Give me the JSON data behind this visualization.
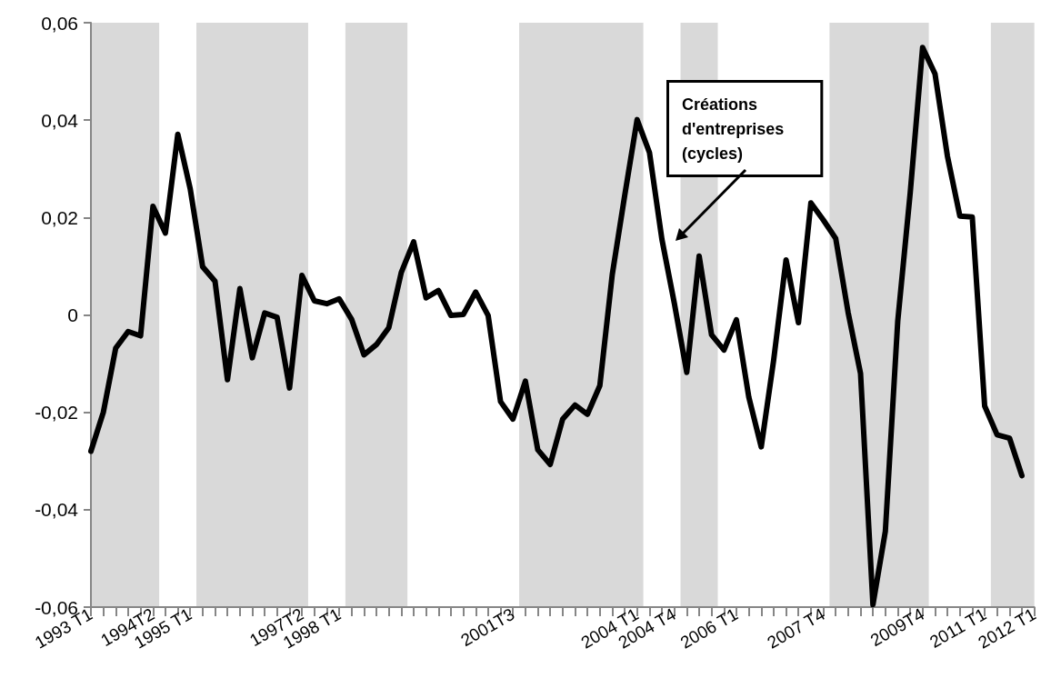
{
  "chart_data": {
    "type": "line",
    "categories": [
      "1993 T1",
      null,
      null,
      null,
      null,
      "1994T2",
      null,
      null,
      "1995 T1",
      null,
      null,
      null,
      null,
      null,
      null,
      null,
      null,
      "1997T2",
      null,
      null,
      "1998 T1",
      null,
      null,
      null,
      null,
      null,
      null,
      null,
      null,
      null,
      null,
      null,
      null,
      null,
      "2001T3",
      null,
      null,
      null,
      null,
      null,
      null,
      null,
      null,
      null,
      "2004 T1",
      null,
      null,
      "2004 T4",
      null,
      null,
      null,
      null,
      "2006 T1",
      null,
      null,
      null,
      null,
      null,
      null,
      "2007 T4",
      null,
      null,
      null,
      null,
      null,
      null,
      null,
      "2009T4",
      null,
      null,
      null,
      null,
      "2011 T1",
      null,
      null,
      null,
      "2012 T1"
    ],
    "series": [
      {
        "color": "#000000",
        "values": [
          -0.028,
          -0.02,
          -0.0068,
          -0.0034,
          -0.0043,
          0.0223,
          0.0168,
          0.0371,
          0.0259,
          0.0099,
          0.0069,
          -0.0133,
          0.0054,
          -0.0088,
          0.0004,
          -0.0005,
          -0.015,
          0.0081,
          0.0029,
          0.0023,
          0.0033,
          -0.0009,
          -0.0082,
          -0.0061,
          -0.0026,
          0.0087,
          0.015,
          0.0035,
          0.005,
          -0.0001,
          0.0001,
          0.0047,
          -0.0001,
          -0.0178,
          -0.0214,
          -0.0136,
          -0.0277,
          -0.0307,
          -0.0214,
          -0.0185,
          -0.0204,
          -0.0145,
          0.0083,
          0.0245,
          0.0401,
          0.0333,
          0.0155,
          0.0024,
          -0.0118,
          0.0121,
          -0.0041,
          -0.0072,
          -0.001,
          -0.0169,
          -0.0271,
          -0.0093,
          0.0113,
          -0.0016,
          0.023,
          0.0195,
          0.0157,
          0.0005,
          -0.012,
          -0.0595,
          -0.0444,
          -0.0012,
          0.025,
          0.0549,
          0.0495,
          0.0326,
          0.0203,
          0.0201,
          -0.0187,
          -0.0246,
          -0.0253,
          -0.033,
          null
        ]
      }
    ],
    "ylim": [
      -0.06,
      0.06
    ],
    "yticks": [
      {
        "value": -0.06,
        "label": "-0,06"
      },
      {
        "value": -0.04,
        "label": "-0,04"
      },
      {
        "value": -0.02,
        "label": "-0,02"
      },
      0,
      {
        "value": 0.02,
        "label": "0,02"
      },
      {
        "value": 0.04,
        "label": "0,04"
      },
      {
        "value": 0.06,
        "label": "0,06"
      }
    ],
    "annotations": [
      "Créations\nd'entreprises\n(cycles)"
    ],
    "grid": false,
    "marker": "none",
    "line_style": "solid"
  }
}
